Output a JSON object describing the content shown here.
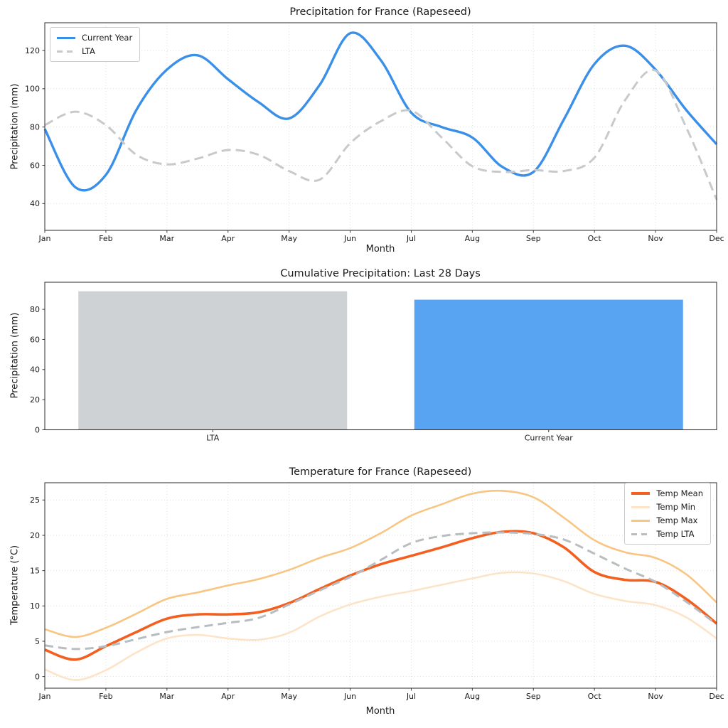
{
  "chart_data": [
    {
      "id": "precipitation-line",
      "type": "line",
      "title": "Precipitation for France (Rapeseed)",
      "xlabel": "Month",
      "ylabel": "Precipitation (mm)",
      "x_tick_labels": [
        "Jan",
        "Feb",
        "Mar",
        "Apr",
        "May",
        "Jun",
        "Jul",
        "Aug",
        "Sep",
        "Oct",
        "Nov",
        "Dec"
      ],
      "x_unit": "month index 0-11, series sampled every 0.5 month",
      "x_step": 0.5,
      "y_ticks": [
        40,
        60,
        80,
        100,
        120
      ],
      "ylim": [
        26,
        134.5
      ],
      "grid": true,
      "legend_position": "upper left",
      "series": [
        {
          "name": "Current Year",
          "color": "#3a8fe9",
          "width": 3.4,
          "dash": null,
          "values": [
            79,
            48.5,
            55,
            89,
            110,
            117.5,
            105,
            93,
            84.5,
            102,
            129,
            115,
            87.5,
            80,
            74.5,
            59,
            56.5,
            84,
            113,
            122.5,
            110,
            89,
            71
          ]
        },
        {
          "name": "LTA",
          "color": "#c7cacc",
          "width": 3.0,
          "dash": "13 7",
          "values": [
            81,
            88,
            81,
            65.5,
            60.5,
            63.5,
            68,
            65.5,
            57,
            52.5,
            71.5,
            83,
            88.5,
            74.5,
            59.5,
            56.5,
            57.5,
            57,
            64,
            94,
            109.5,
            80,
            42
          ]
        }
      ]
    },
    {
      "id": "cumulative-precipitation-bar",
      "type": "bar",
      "title": "Cumulative Precipitation: Last 28 Days",
      "xlabel": "",
      "ylabel": "Precipitation (mm)",
      "categories": [
        "LTA",
        "Current Year"
      ],
      "values": [
        92,
        86.4
      ],
      "bar_colors": [
        "#ced2d5",
        "#58a3f2"
      ],
      "y_ticks": [
        0,
        20,
        40,
        60,
        80
      ],
      "ylim": [
        0,
        98
      ],
      "grid": false
    },
    {
      "id": "temperature-line",
      "type": "line",
      "title": "Temperature for France (Rapeseed)",
      "xlabel": "Month",
      "ylabel": "Temperature (°C)",
      "x_tick_labels": [
        "Jan",
        "Feb",
        "Mar",
        "Apr",
        "May",
        "Jun",
        "Jul",
        "Aug",
        "Sep",
        "Oct",
        "Nov",
        "Dec"
      ],
      "x_unit": "month index 0-11, series sampled every 0.5 month",
      "x_step": 0.5,
      "y_ticks": [
        0,
        5,
        10,
        15,
        20,
        25
      ],
      "ylim": [
        -1.65,
        27.45
      ],
      "grid": true,
      "legend_position": "upper right",
      "series": [
        {
          "name": "Temp Mean",
          "color": "#f35f1e",
          "width": 3.6,
          "dash": null,
          "values": [
            3.8,
            2.4,
            4.3,
            6.3,
            8.2,
            8.8,
            8.8,
            9.1,
            10.4,
            12.4,
            14.3,
            15.9,
            17.1,
            18.3,
            19.6,
            20.5,
            20.3,
            18.3,
            14.8,
            13.7,
            13.4,
            11.0,
            7.5
          ]
        },
        {
          "name": "Temp Min",
          "color": "#fde4c8",
          "width": 2.6,
          "dash": null,
          "values": [
            1.0,
            -0.5,
            0.9,
            3.4,
            5.4,
            5.9,
            5.4,
            5.2,
            6.2,
            8.5,
            10.2,
            11.3,
            12.1,
            13.0,
            13.9,
            14.7,
            14.6,
            13.5,
            11.7,
            10.7,
            10.1,
            8.4,
            5.4
          ]
        },
        {
          "name": "Temp Max",
          "color": "#f9c583",
          "width": 2.6,
          "dash": null,
          "values": [
            6.7,
            5.6,
            6.9,
            8.9,
            11.0,
            11.9,
            12.9,
            13.8,
            15.1,
            16.8,
            18.2,
            20.3,
            22.8,
            24.4,
            25.9,
            26.3,
            25.4,
            22.5,
            19.3,
            17.6,
            16.8,
            14.5,
            10.5
          ]
        },
        {
          "name": "Temp LTA",
          "color": "#b7bdc0",
          "width": 3.0,
          "dash": "12 7",
          "values": [
            4.4,
            3.9,
            4.3,
            5.3,
            6.3,
            7.0,
            7.6,
            8.3,
            10.2,
            12.2,
            14.1,
            16.5,
            18.9,
            19.9,
            20.3,
            20.4,
            20.2,
            19.4,
            17.4,
            15.3,
            13.4,
            10.6,
            7.4
          ]
        }
      ]
    }
  ],
  "style": {
    "frame_color": "#3c3c3c",
    "grid_color": "#d7d7d7",
    "tick_text_color": "#1a1a1a"
  }
}
